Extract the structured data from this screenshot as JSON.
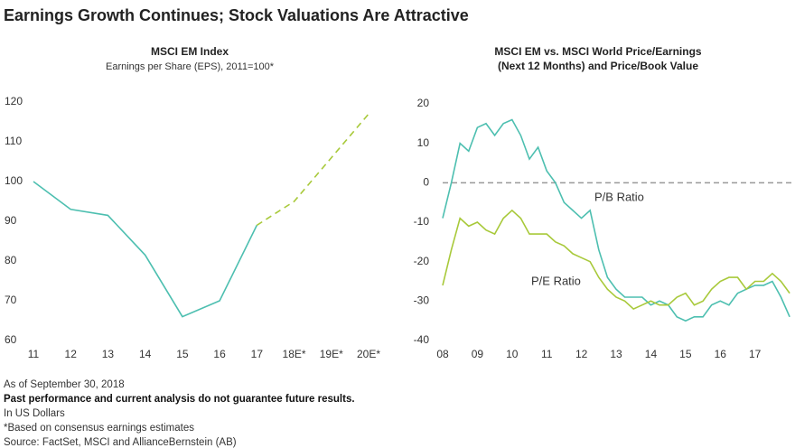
{
  "title": "Earnings Growth Continues; Stock Valuations Are Attractive",
  "chart_data": [
    {
      "type": "line",
      "title": [
        "MSCI EM Index"
      ],
      "subtitle": "Earnings per Share (EPS), 2011=100*",
      "categories": [
        "11",
        "12",
        "13",
        "14",
        "15",
        "16",
        "17",
        "18E*",
        "19E*",
        "20E*"
      ],
      "series": [
        {
          "color": "#4dbfb0",
          "dash": false,
          "values": [
            100,
            93,
            91.5,
            81.5,
            66,
            70,
            89,
            null,
            null,
            null
          ]
        },
        {
          "color": "#a8c93a",
          "dash": true,
          "values": [
            null,
            null,
            null,
            null,
            null,
            null,
            89,
            95,
            106,
            117
          ]
        }
      ],
      "ylim": [
        60,
        120
      ],
      "yticks": [
        60,
        70,
        80,
        90,
        100,
        110,
        120
      ],
      "grid": false
    },
    {
      "type": "line",
      "title": [
        "MSCI EM vs. MSCI World Price/Earnings",
        "(Next 12 Months) and Price/Book Value"
      ],
      "x": [
        2008,
        2008.25,
        2008.5,
        2008.75,
        2009,
        2009.25,
        2009.5,
        2009.75,
        2010,
        2010.25,
        2010.5,
        2010.75,
        2011,
        2011.25,
        2011.5,
        2011.75,
        2012,
        2012.25,
        2012.5,
        2012.75,
        2013,
        2013.25,
        2013.5,
        2013.75,
        2014,
        2014.25,
        2014.5,
        2014.75,
        2015,
        2015.25,
        2015.5,
        2015.75,
        2016,
        2016.25,
        2016.5,
        2016.75,
        2017,
        2017.25,
        2017.5,
        2017.75,
        2018
      ],
      "series": [
        {
          "name": "P/B Ratio",
          "color": "#4dbfb0",
          "values": [
            -9,
            0,
            10,
            8,
            14,
            15,
            12,
            15,
            16,
            12,
            6,
            9,
            3,
            0,
            -5,
            -7,
            -9,
            -7,
            -17,
            -24,
            -27,
            -29,
            -29,
            -29,
            -31,
            -30,
            -31,
            -34,
            -35,
            -34,
            -34,
            -31,
            -30,
            -31,
            -28,
            -27,
            -26,
            -26,
            -25,
            -29,
            -34
          ]
        },
        {
          "name": "P/E Ratio",
          "color": "#a8c93a",
          "values": [
            -26,
            -17,
            -9,
            -11,
            -10,
            -12,
            -13,
            -9,
            -7,
            -9,
            -13,
            -13,
            -13,
            -15,
            -16,
            -18,
            -19,
            -20,
            -24,
            -27,
            -29,
            -30,
            -32,
            -31,
            -30,
            -31,
            -31,
            -29,
            -28,
            -31,
            -30,
            -27,
            -25,
            -24,
            -24,
            -27,
            -25,
            -25,
            -23,
            -25,
            -28
          ]
        }
      ],
      "xlim": [
        2008,
        2018.05
      ],
      "xticks": [
        {
          "value": 2008,
          "label": "08"
        },
        {
          "value": 2009,
          "label": "09"
        },
        {
          "value": 2010,
          "label": "10"
        },
        {
          "value": 2011,
          "label": "11"
        },
        {
          "value": 2012,
          "label": "12"
        },
        {
          "value": 2013,
          "label": "13"
        },
        {
          "value": 2014,
          "label": "14"
        },
        {
          "value": 2015,
          "label": "15"
        },
        {
          "value": 2016,
          "label": "16"
        },
        {
          "value": 2017,
          "label": "17"
        }
      ],
      "ylim": [
        -40,
        20
      ],
      "yticks": [
        -40,
        -30,
        -20,
        -10,
        0,
        10,
        20
      ],
      "grid": false,
      "zero_line": true
    }
  ],
  "notes": [
    "As of September 30, 2018",
    "Past performance and current analysis do not guarantee future results.",
    "In US Dollars",
    "*Based on consensus earnings estimates",
    "Source: FactSet, MSCI and AllianceBernstein (AB)"
  ]
}
